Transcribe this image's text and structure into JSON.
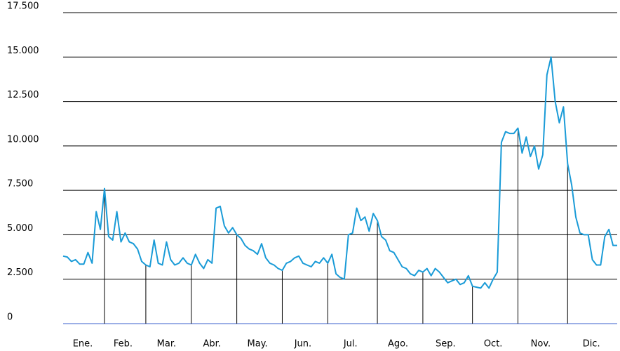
{
  "chart_data": {
    "type": "line",
    "color": "#1a9bd7",
    "grid": true,
    "ylim": [
      0,
      17500
    ],
    "yticks": [
      0,
      {
        "value": 2500,
        "label": "2.500"
      },
      {
        "value": 5000,
        "label": "5.000"
      },
      {
        "value": 7500,
        "label": "7.500"
      },
      {
        "value": 10000,
        "label": "10.000"
      },
      {
        "value": 12500,
        "label": "12.500"
      },
      {
        "value": 15000,
        "label": "15.000"
      },
      {
        "value": 17500,
        "label": "17.500"
      }
    ],
    "months": [
      {
        "name": "Ene.",
        "values": [
          3800,
          3750,
          3500,
          3600,
          3350,
          3350,
          4000,
          3400,
          6300,
          5300
        ]
      },
      {
        "name": "Feb.",
        "values": [
          7600,
          4900,
          4700,
          6300,
          4600,
          5100,
          4600,
          4500,
          4200,
          3500
        ]
      },
      {
        "name": "Mar.",
        "values": [
          3300,
          3200,
          4700,
          3400,
          3300,
          4600,
          3600,
          3300,
          3400,
          3700,
          3400
        ]
      },
      {
        "name": "Abr.",
        "values": [
          3300,
          3900,
          3400,
          3100,
          3600,
          3400,
          6500,
          6600,
          5500,
          5100,
          5400
        ]
      },
      {
        "name": "May.",
        "values": [
          5000,
          4800,
          4400,
          4200,
          4100,
          3900,
          4500,
          3700,
          3400,
          3300,
          3100
        ]
      },
      {
        "name": "Jun.",
        "values": [
          3000,
          3400,
          3500,
          3700,
          3800,
          3400,
          3300,
          3200,
          3500,
          3400,
          3700
        ]
      },
      {
        "name": "Jul.",
        "values": [
          3400,
          3900,
          2800,
          2600,
          2500,
          5000,
          5100,
          6500,
          5800,
          6000,
          5200,
          6200
        ]
      },
      {
        "name": "Ago.",
        "values": [
          5800,
          4900,
          4700,
          4100,
          4000,
          3600,
          3200,
          3100,
          2800,
          2700,
          3000
        ]
      },
      {
        "name": "Sep.",
        "values": [
          2900,
          3100,
          2700,
          3100,
          2900,
          2600,
          2300,
          2400,
          2500,
          2200,
          2300,
          2700
        ]
      },
      {
        "name": "Oct.",
        "values": [
          2100,
          2050,
          2000,
          2300,
          2000,
          2500,
          2900,
          10200,
          10800,
          10700,
          10700
        ]
      },
      {
        "name": "Nov.",
        "values": [
          11000,
          9600,
          10500,
          9400,
          10000,
          8700,
          9500,
          14000,
          15000,
          12500,
          11300,
          12200
        ]
      },
      {
        "name": "Dic.",
        "values": [
          9000,
          7800,
          6000,
          5100,
          5000,
          5000,
          3600,
          3300,
          3300,
          4900,
          5300,
          4400,
          4400
        ]
      }
    ]
  }
}
